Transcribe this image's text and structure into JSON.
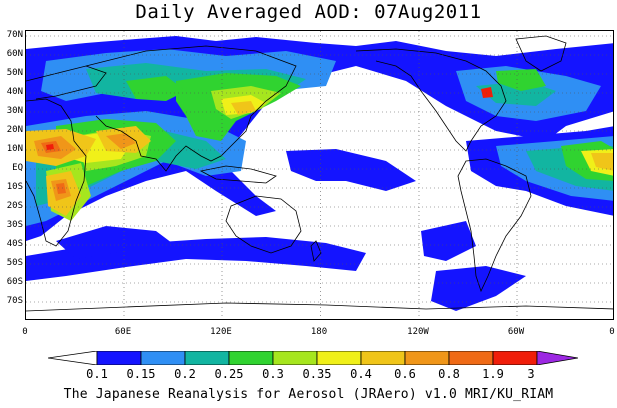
{
  "title": "Daily Averaged AOD: 07Aug2011",
  "footer": "The Japanese Reanalysis for Aerosol (JRAero) v1.0 MRI/KU_RIAM",
  "lat_labels": [
    "70N",
    "60N",
    "50N",
    "40N",
    "30N",
    "20N",
    "10N",
    "EQ",
    "10S",
    "20S",
    "30S",
    "40S",
    "50S",
    "60S",
    "70S"
  ],
  "lon_labels": [
    "0",
    "60E",
    "120E",
    "180",
    "120W",
    "60W",
    "0"
  ],
  "colorbar": {
    "labels": [
      "0.1",
      "0.15",
      "0.2",
      "0.25",
      "0.3",
      "0.35",
      "0.4",
      "0.6",
      "0.8",
      "1.9",
      "3"
    ],
    "colors": [
      "#ffffff",
      "#1414ff",
      "#2f8ff4",
      "#12b5a1",
      "#30d330",
      "#a6e61e",
      "#f0f019",
      "#f0c519",
      "#f09619",
      "#ef6a16",
      "#f01e0a",
      "#9c28e2"
    ]
  },
  "map": {
    "colors": {
      "low": "#ffffff",
      "level1": "#1414ff",
      "level2": "#2f8ff4",
      "level3": "#12b5a1",
      "level4": "#30d330",
      "level5": "#a6e61e",
      "level6": "#f0f019",
      "level7": "#f0c519",
      "level8": "#f09619",
      "level9": "#ef6a16",
      "level10": "#f01e0a",
      "coast": "#000000",
      "grid": "#555555"
    }
  }
}
